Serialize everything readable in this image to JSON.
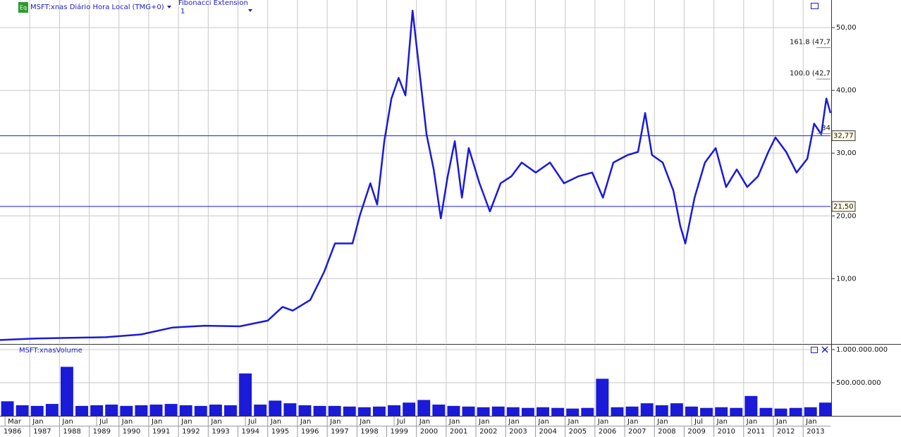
{
  "header": {
    "badge": "Eq",
    "symbol": "MSFT:xnas Diário Hora Local (TMG+0)",
    "study": "Fibonacci Extension",
    "study_param": "1"
  },
  "chart_data": [
    {
      "type": "line",
      "title": "MSFT:xnas",
      "xlim": [
        1986.0,
        2013.92
      ],
      "ylim": [
        -0.3,
        54.4
      ],
      "yticks": [
        {
          "value": 10,
          "label": "10,00"
        },
        {
          "value": 20,
          "label": "20,00"
        },
        {
          "value": 30,
          "label": "30,00"
        },
        {
          "value": 40,
          "label": "40,00"
        },
        {
          "value": 50,
          "label": "50,00"
        }
      ],
      "grid": true,
      "series": [
        {
          "name": "MSFT:xnas",
          "color": "#1a1ad8",
          "x": [
            1986.0,
            1987.2,
            1988.4,
            1989.56,
            1990.74,
            1991.8,
            1992.9,
            1994.06,
            1995.0,
            1995.5,
            1995.84,
            1996.43,
            1996.9,
            1997.26,
            1997.85,
            1998.1,
            1998.45,
            1998.68,
            1998.92,
            1999.16,
            1999.4,
            1999.63,
            1999.87,
            2000.1,
            2000.34,
            2000.58,
            2000.82,
            2001.05,
            2001.29,
            2001.53,
            2001.76,
            2002.12,
            2002.47,
            2002.83,
            2003.19,
            2003.54,
            2004.01,
            2004.49,
            2004.96,
            2005.44,
            2005.91,
            2006.27,
            2006.62,
            2007.1,
            2007.45,
            2007.69,
            2007.92,
            2008.28,
            2008.64,
            2008.87,
            2009.04,
            2009.35,
            2009.7,
            2010.06,
            2010.41,
            2010.77,
            2011.12,
            2011.48,
            2011.83,
            2012.07,
            2012.43,
            2012.78,
            2013.14,
            2013.37,
            2013.61,
            2013.78,
            2013.92
          ],
          "values": [
            0.22,
            0.45,
            0.56,
            0.67,
            1.1,
            2.2,
            2.5,
            2.4,
            3.3,
            5.5,
            4.9,
            6.6,
            11.1,
            15.6,
            15.6,
            20.1,
            25.2,
            21.8,
            31.9,
            38.7,
            42.0,
            39.2,
            52.7,
            43.1,
            33.0,
            27.4,
            19.6,
            26.3,
            31.9,
            22.9,
            30.8,
            25.2,
            20.7,
            25.2,
            26.3,
            28.5,
            26.9,
            28.5,
            25.2,
            26.3,
            26.9,
            22.9,
            28.5,
            29.7,
            30.2,
            36.4,
            29.7,
            28.5,
            24.0,
            18.4,
            15.6,
            22.9,
            28.5,
            30.8,
            24.6,
            27.4,
            24.6,
            26.3,
            30.2,
            32.5,
            30.2,
            26.9,
            29.1,
            34.7,
            33.0,
            38.7,
            36.4
          ]
        }
      ],
      "hlines": [
        {
          "value": 32.77,
          "label": "32,77"
        },
        {
          "value": 21.5,
          "label": "21,50"
        }
      ],
      "annotations": [
        {
          "text": "161.8 (47,7",
          "value": 47.7
        },
        {
          "text": "100.0 (42,7",
          "value": 42.7
        },
        {
          "text": "34",
          "value": 34
        }
      ]
    },
    {
      "type": "bar",
      "title": "MSFT:xnasVolume",
      "xlim": [
        1986.0,
        2013.92
      ],
      "ylim": [
        0,
        1064000000
      ],
      "yticks": [
        {
          "value": 500000000,
          "label": "500.000.000"
        },
        {
          "value": 1000000000,
          "label": "1.000.000.000"
        }
      ],
      "grid": true,
      "series": [
        {
          "name": "MSFT:xnasVolume",
          "color": "#1a1ad8",
          "x": [
            1986.25,
            1986.75,
            1987.25,
            1987.75,
            1988.25,
            1988.75,
            1989.25,
            1989.75,
            1990.25,
            1990.75,
            1991.25,
            1991.75,
            1992.25,
            1992.75,
            1993.25,
            1993.75,
            1994.25,
            1994.75,
            1995.25,
            1995.75,
            1996.25,
            1996.75,
            1997.25,
            1997.75,
            1998.25,
            1998.75,
            1999.25,
            1999.75,
            2000.25,
            2000.75,
            2001.25,
            2001.75,
            2002.25,
            2002.75,
            2003.25,
            2003.75,
            2004.25,
            2004.75,
            2005.25,
            2005.75,
            2006.25,
            2006.75,
            2007.25,
            2007.75,
            2008.25,
            2008.75,
            2009.25,
            2009.75,
            2010.25,
            2010.75,
            2011.25,
            2011.75,
            2012.25,
            2012.75,
            2013.25,
            2013.75
          ],
          "values": [
            220000000.0,
            160000000.0,
            150000000.0,
            180000000.0,
            740000000.0,
            150000000.0,
            160000000.0,
            170000000.0,
            150000000.0,
            160000000.0,
            170000000.0,
            180000000.0,
            160000000.0,
            150000000.0,
            170000000.0,
            160000000.0,
            640000000.0,
            170000000.0,
            230000000.0,
            190000000.0,
            160000000.0,
            150000000.0,
            150000000.0,
            140000000.0,
            130000000.0,
            140000000.0,
            160000000.0,
            200000000.0,
            240000000.0,
            170000000.0,
            150000000.0,
            140000000.0,
            130000000.0,
            140000000.0,
            130000000.0,
            120000000.0,
            130000000.0,
            120000000.0,
            110000000.0,
            120000000.0,
            560000000.0,
            130000000.0,
            140000000.0,
            190000000.0,
            160000000.0,
            190000000.0,
            140000000.0,
            120000000.0,
            130000000.0,
            120000000.0,
            300000000.0,
            120000000.0,
            110000000.0,
            120000000.0,
            130000000.0,
            200000000.0
          ]
        }
      ],
      "xticks": [
        {
          "value": 1986.17,
          "label": "Mar"
        },
        {
          "value": 1987,
          "label": "Jan"
        },
        {
          "value": 1988,
          "label": "Jan"
        },
        {
          "value": 1989.25,
          "label": "Jul"
        },
        {
          "value": 1990,
          "label": "Jan"
        },
        {
          "value": 1991,
          "label": "Jan"
        },
        {
          "value": 1992,
          "label": "Jan"
        },
        {
          "value": 1993,
          "label": "Jan"
        },
        {
          "value": 1994.25,
          "label": "Jul"
        },
        {
          "value": 1995,
          "label": "Jan"
        },
        {
          "value": 1996,
          "label": "Jan"
        },
        {
          "value": 1997,
          "label": "Jan"
        },
        {
          "value": 1998,
          "label": "Jan"
        },
        {
          "value": 1999.25,
          "label": "Jul"
        },
        {
          "value": 2000,
          "label": "Jan"
        },
        {
          "value": 2001,
          "label": "Jan"
        },
        {
          "value": 2002,
          "label": "Jan"
        },
        {
          "value": 2003,
          "label": "Jan"
        },
        {
          "value": 2004,
          "label": "Jan"
        },
        {
          "value": 2005,
          "label": "Jan"
        },
        {
          "value": 2006,
          "label": "Jan"
        },
        {
          "value": 2007,
          "label": "Jan"
        },
        {
          "value": 2008,
          "label": "Jan"
        },
        {
          "value": 2009.25,
          "label": "Jul"
        },
        {
          "value": 2010,
          "label": "Jan"
        },
        {
          "value": 2011,
          "label": "Jan"
        },
        {
          "value": 2012,
          "label": "Jan"
        },
        {
          "value": 2013,
          "label": "Jan"
        }
      ],
      "years": [
        1986,
        1987,
        1988,
        1989,
        1990,
        1991,
        1992,
        1993,
        1994,
        1995,
        1996,
        1997,
        1998,
        1999,
        2000,
        2001,
        2002,
        2003,
        2004,
        2005,
        2006,
        2007,
        2008,
        2009,
        2010,
        2011,
        2012,
        2013
      ]
    }
  ]
}
